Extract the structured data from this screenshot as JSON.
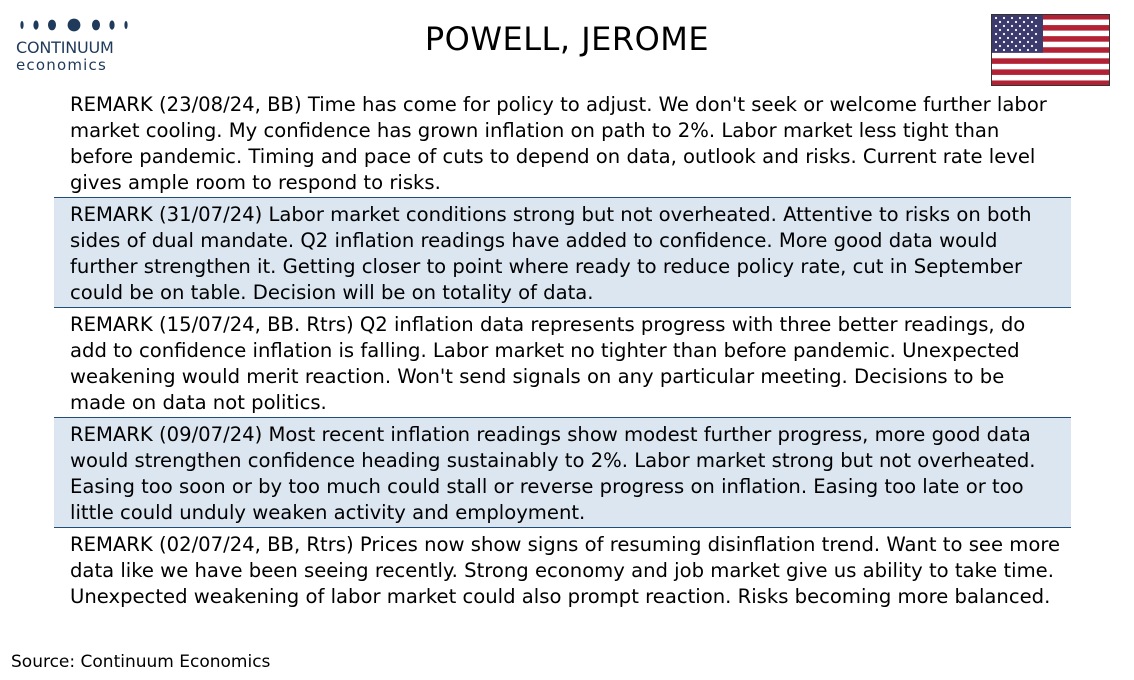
{
  "logo": {
    "line1": "CONTINUUM",
    "line2": "economics",
    "color": "#1f3a5a"
  },
  "title": "POWELL, JEROME",
  "flag": {
    "icon": "us-flag-icon",
    "red": "#b22234",
    "blue": "#3c3b6e",
    "white": "#ffffff"
  },
  "remarks": [
    {
      "text": "REMARK (23/08/24, BB) Time has come for policy to adjust. We don't seek or welcome further labor market cooling. My confidence has grown inflation on path to 2%. Labor market less tight than before pandemic. Timing and pace of cuts to depend on data, outlook and risks. Current rate level gives ample room to respond to risks.",
      "shaded": false
    },
    {
      "text": "REMARK (31/07/24) Labor market conditions strong but not overheated. Attentive to risks on both sides of dual mandate. Q2 inflation readings have added to confidence. More good data would further strengthen it. Getting closer to point where ready to reduce policy rate, cut in September could be on table. Decision will be on totality of data.",
      "shaded": true
    },
    {
      "text": "REMARK (15/07/24, BB. Rtrs) Q2 inflation data represents progress with three better readings, do add to confidence inflation is falling. Labor market no tighter than before pandemic. Unexpected weakening would merit reaction. Won't send signals on any particular meeting. Decisions to be made on data not politics.",
      "shaded": false
    },
    {
      "text": "REMARK (09/07/24) Most recent inflation readings show modest further progress, more good data would strengthen confidence heading sustainably to 2%. Labor market strong but not overheated. Easing too soon or by too much could stall or reverse progress on inflation. Easing too late or too little could unduly weaken activity and employment.",
      "shaded": true
    },
    {
      "text": "REMARK (02/07/24, BB, Rtrs) Prices now show signs of resuming disinflation trend. Want to see more data like we have been seeing recently. Strong economy and job market give us ability to take time.  Unexpected weakening of labor market could also prompt reaction. Risks becoming more balanced.",
      "shaded": false
    }
  ],
  "source": "Source: Continuum Economics",
  "colors": {
    "row_shade": "#dce6f1",
    "divider": "#1f4e79"
  }
}
